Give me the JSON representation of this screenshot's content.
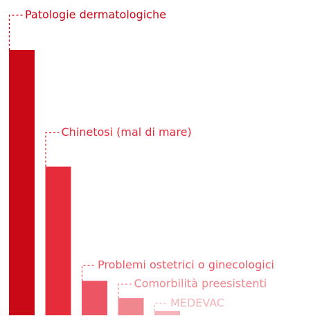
{
  "chart_data": {
    "type": "bar",
    "categories": [
      "Patologie dermatologiche",
      "Chinetosi (mal di mare)",
      "Problemi ostetrici o ginecologici",
      "Comorbilità preesistenti",
      "MEDEVAC"
    ],
    "values": [
      100,
      56,
      13,
      6.5,
      1.6
    ],
    "colors": [
      "#c90a16",
      "#e62b3b",
      "#ec5563",
      "#f0878f",
      "#f4b4ba"
    ],
    "ylim": [
      0,
      100
    ]
  }
}
